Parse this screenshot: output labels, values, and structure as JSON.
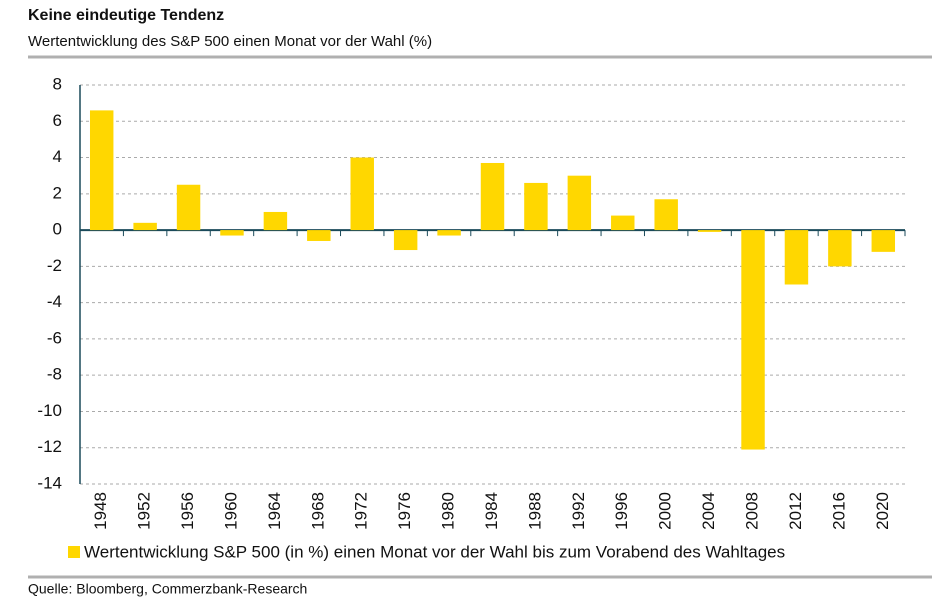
{
  "chart_data": {
    "type": "bar",
    "title": "Keine eindeutige Tendenz",
    "subtitle": "Wertentwicklung des S&P 500 einen Monat vor der Wahl (%)",
    "categories": [
      "1948",
      "1952",
      "1956",
      "1960",
      "1964",
      "1968",
      "1972",
      "1976",
      "1980",
      "1984",
      "1988",
      "1992",
      "1996",
      "2000",
      "2004",
      "2008",
      "2012",
      "2016",
      "2020"
    ],
    "series": [
      {
        "name": "Wertentwicklung S&P 500 (in %) einen Monat vor der Wahl bis zum Vorabend des Wahltages",
        "color": "#ffd700",
        "values": [
          6.6,
          0.4,
          2.5,
          -0.3,
          1.0,
          -0.6,
          4.0,
          -1.1,
          -0.3,
          3.7,
          2.6,
          3.0,
          0.8,
          1.7,
          -0.1,
          -12.1,
          -3.0,
          -2.0,
          -1.2
        ]
      }
    ],
    "ylim": [
      -14,
      8
    ],
    "yticks": [
      -14,
      -12,
      -10,
      -8,
      -6,
      -4,
      -2,
      0,
      2,
      4,
      6,
      8
    ],
    "grid": true,
    "source": "Quelle: Bloomberg, Commerzbank-Research"
  }
}
